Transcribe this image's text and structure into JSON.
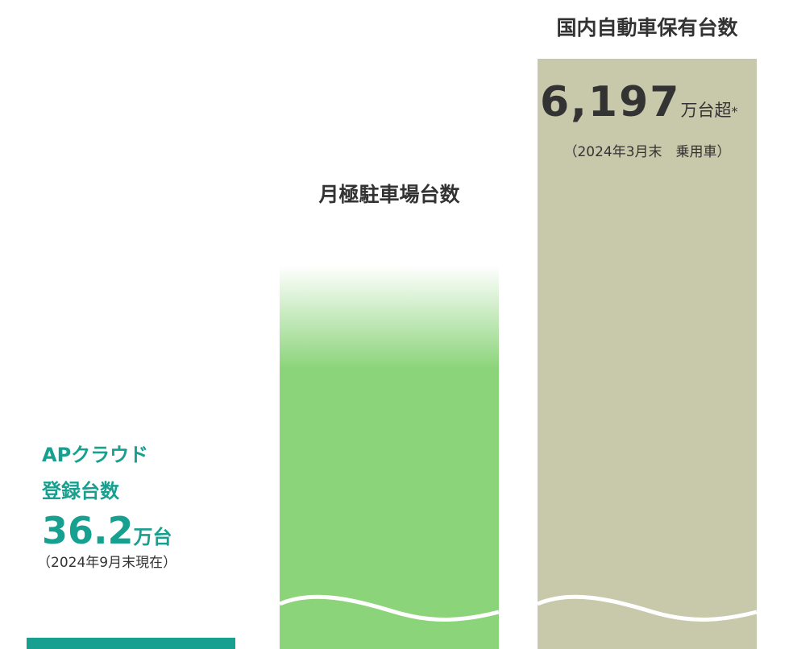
{
  "items": [
    {
      "title_lines": [
        "APクラウド",
        "登録台数"
      ],
      "value": "36.2",
      "unit": "万台",
      "note": "（2024年9月末現在）"
    },
    {
      "title": "月極駐車場台数"
    },
    {
      "title": "国内自動車保有台数",
      "value": "6,197",
      "unit": "万台超",
      "mark": "*",
      "note": "（2024年3月末　乗用車）"
    }
  ]
}
